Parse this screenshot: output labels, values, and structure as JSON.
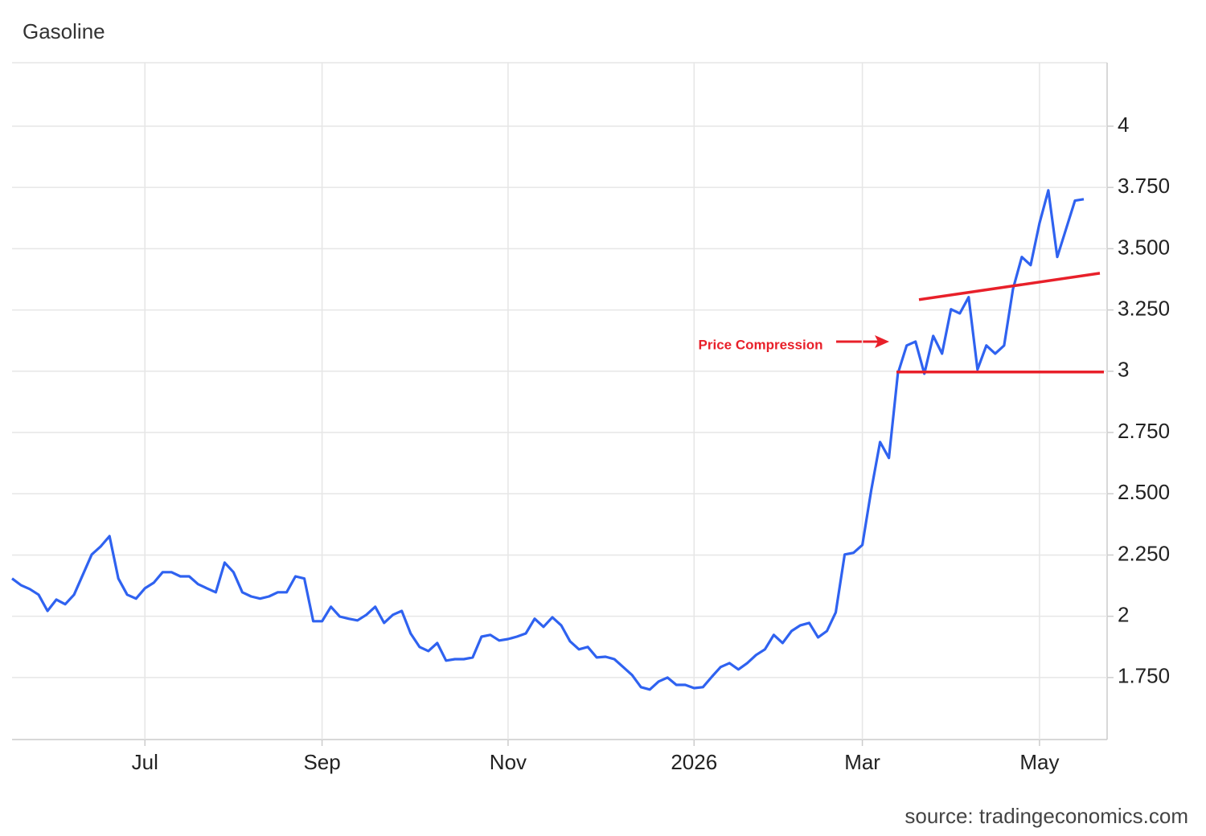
{
  "chart_data": {
    "type": "line",
    "title": "Gasoline",
    "source": "source: tradingeconomics.com",
    "annotation": "Price Compression",
    "categories": [
      null,
      null,
      null,
      null,
      null,
      null,
      null,
      null,
      null,
      null,
      null,
      null,
      null,
      null,
      null,
      "Jul",
      null,
      null,
      null,
      null,
      null,
      null,
      null,
      null,
      null,
      null,
      null,
      null,
      null,
      null,
      null,
      null,
      null,
      null,
      null,
      "Sep",
      null,
      null,
      null,
      null,
      null,
      null,
      null,
      null,
      null,
      null,
      null,
      null,
      null,
      null,
      null,
      null,
      null,
      null,
      null,
      null,
      "Nov",
      null,
      null,
      null,
      null,
      null,
      null,
      null,
      null,
      null,
      null,
      null,
      null,
      null,
      null,
      null,
      null,
      null,
      null,
      null,
      null,
      "2026",
      null,
      null,
      null,
      null,
      null,
      null,
      null,
      null,
      null,
      null,
      null,
      null,
      null,
      null,
      null,
      null,
      null,
      null,
      "Mar",
      null,
      null,
      null,
      null,
      null,
      null,
      null,
      null,
      null,
      null,
      null,
      null,
      null,
      null,
      null,
      null,
      null,
      null,
      null,
      "May",
      null,
      null,
      null,
      null,
      null
    ],
    "series": [
      {
        "name": "Gasoline",
        "color": "#2f62f0",
        "values": [
          2.154,
          2.127,
          2.111,
          2.088,
          2.022,
          2.068,
          2.049,
          2.088,
          2.17,
          2.252,
          2.285,
          2.327,
          2.154,
          2.088,
          2.072,
          2.114,
          2.137,
          2.18,
          2.18,
          2.163,
          2.163,
          2.131,
          2.114,
          2.098,
          2.219,
          2.18,
          2.098,
          2.081,
          2.072,
          2.081,
          2.098,
          2.098,
          2.163,
          2.154,
          1.98,
          1.98,
          2.039,
          1.999,
          1.99,
          1.983,
          2.006,
          2.039,
          1.973,
          2.006,
          2.022,
          1.93,
          1.875,
          1.858,
          1.891,
          1.819,
          1.825,
          1.825,
          1.832,
          1.917,
          1.924,
          1.901,
          1.907,
          1.917,
          1.93,
          1.99,
          1.957,
          1.996,
          1.963,
          1.898,
          1.865,
          1.875,
          1.832,
          1.835,
          1.825,
          1.793,
          1.76,
          1.711,
          1.701,
          1.734,
          1.75,
          1.72,
          1.72,
          1.707,
          1.711,
          1.753,
          1.793,
          1.809,
          1.783,
          1.809,
          1.842,
          1.865,
          1.924,
          1.891,
          1.94,
          1.963,
          1.973,
          1.914,
          1.94,
          2.016,
          2.252,
          2.259,
          2.291,
          2.514,
          2.711,
          2.646,
          2.99,
          3.105,
          3.121,
          2.99,
          3.144,
          3.072,
          3.253,
          3.236,
          3.302,
          3.007,
          3.105,
          3.072,
          3.105,
          3.335,
          3.466,
          3.433,
          3.604,
          3.738,
          3.466,
          3.581,
          3.696,
          3.702
        ]
      }
    ],
    "trend_lines": [
      {
        "color": "#e8202a",
        "values": [
          3.292,
          3.4
        ]
      },
      {
        "color": "#e8202a",
        "values": [
          2.997,
          2.997
        ]
      }
    ],
    "ylim": [
      1.497,
      4.259
    ],
    "yticks": [
      {
        "value": 1.75,
        "label": "1.750"
      },
      2,
      {
        "value": 2.25,
        "label": "2.250"
      },
      {
        "value": 2.5,
        "label": "2.500"
      },
      {
        "value": 2.75,
        "label": "2.750"
      },
      3,
      {
        "value": 3.25,
        "label": "3.250"
      },
      {
        "value": 3.5,
        "label": "3.500"
      },
      {
        "value": 3.75,
        "label": "3.750"
      },
      4
    ],
    "grid": true
  }
}
